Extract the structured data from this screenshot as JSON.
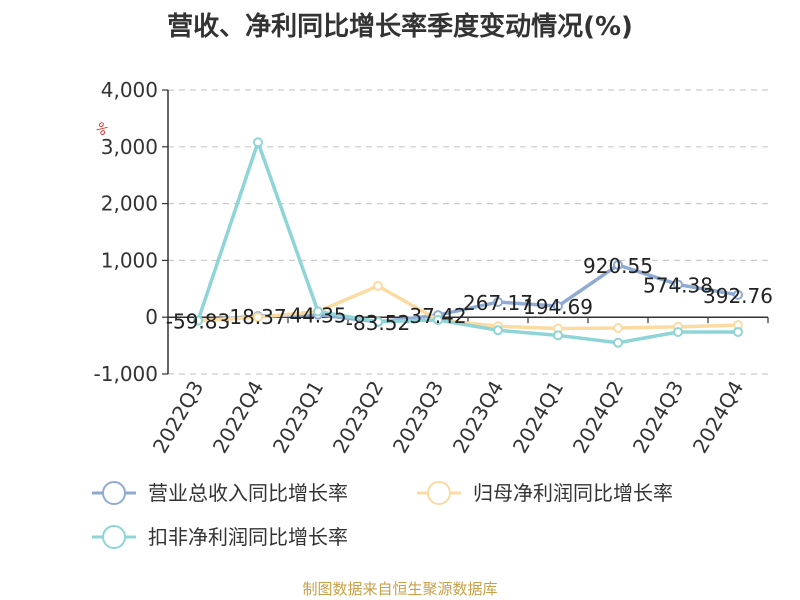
{
  "title": "营收、净利同比增长率季度变动情况(%)",
  "unit_label": "%",
  "source": "制图数据来自恒生聚源数据库",
  "colors": {
    "revenue": "#8fabd3",
    "net_profit": "#fbdba2",
    "deducted_net_profit": "#8fd5d8",
    "source_text": "#c8a048",
    "unit_text": "#d9383a"
  },
  "chart_data": {
    "type": "line",
    "title": "营收、净利同比增长率季度变动情况(%)",
    "xlabel": "",
    "ylabel": "%",
    "ylim": [
      -1000,
      4000
    ],
    "yticks": [
      -1000,
      0,
      1000,
      2000,
      3000,
      4000
    ],
    "ytick_labels": [
      "-1,000",
      "0",
      "1,000",
      "2,000",
      "3,000",
      "4,000"
    ],
    "grid": true,
    "legend_position": "bottom",
    "categories": [
      "2022Q3",
      "2022Q4",
      "2023Q1",
      "2023Q2",
      "2023Q3",
      "2023Q4",
      "2024Q1",
      "2024Q2",
      "2024Q3",
      "2024Q4"
    ],
    "series": [
      {
        "name": "营业总收入同比增长率",
        "values": [
          -59.83,
          18.37,
          44.35,
          -83.52,
          37.42,
          267.17,
          194.69,
          920.55,
          574.38,
          392.76
        ],
        "labels": [
          "-59.83",
          "18.37",
          "44.35",
          "-83.52",
          "37.42",
          "267.17",
          "194.69",
          "920.55",
          "574.38",
          "392.76"
        ]
      },
      {
        "name": "归母净利润同比增长率",
        "values": [
          -60,
          0,
          100,
          550,
          -50,
          -160,
          -200,
          -190,
          -170,
          -140
        ]
      },
      {
        "name": "扣非净利润同比增长率",
        "values": [
          -60,
          3080,
          100,
          -80,
          -50,
          -230,
          -320,
          -450,
          -260,
          -260
        ]
      }
    ]
  }
}
